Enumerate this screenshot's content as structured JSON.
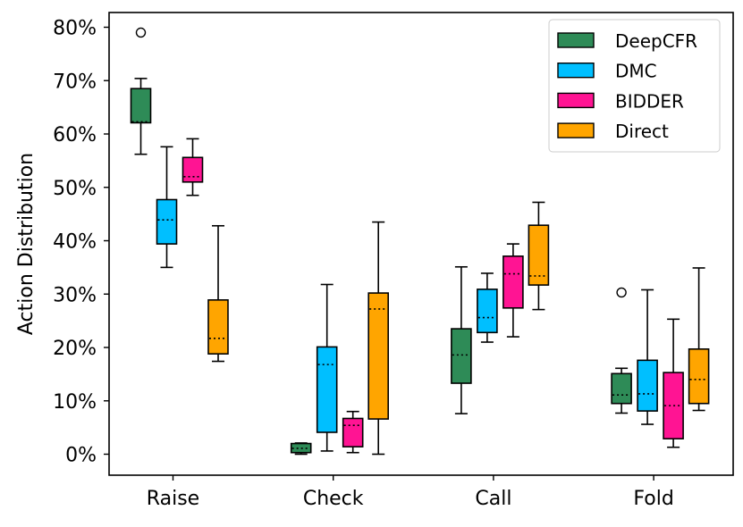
{
  "chart_data": {
    "type": "boxplot",
    "title": "",
    "xlabel": "",
    "ylabel": "Action Distribution",
    "ylim": [
      -3.7,
      83
    ],
    "yticks": [
      0,
      10,
      20,
      30,
      40,
      50,
      60,
      70,
      80
    ],
    "ytick_format": "{v}%",
    "grid": false,
    "legend_position": "top-right",
    "categories": [
      "Raise",
      "Check",
      "Call",
      "Fold"
    ],
    "median_style": "dotted",
    "series": [
      {
        "name": "DeepCFR",
        "color": "#2e8b57",
        "boxes": [
          {
            "whislo": 56.2,
            "q1": 62.1,
            "med": 62.3,
            "q3": 68.5,
            "whishi": 70.4,
            "fliers": [
              79.0
            ]
          },
          {
            "whislo": 0.0,
            "q1": 0.3,
            "med": 1.1,
            "q3": 2.0,
            "whishi": 2.1,
            "fliers": []
          },
          {
            "whislo": 7.6,
            "q1": 13.3,
            "med": 18.6,
            "q3": 23.5,
            "whishi": 35.1,
            "fliers": []
          },
          {
            "whislo": 7.7,
            "q1": 9.5,
            "med": 11.1,
            "q3": 15.1,
            "whishi": 16.1,
            "fliers": [
              30.3
            ]
          }
        ]
      },
      {
        "name": "DMC",
        "color": "#00bfff",
        "boxes": [
          {
            "whislo": 35.0,
            "q1": 39.4,
            "med": 43.9,
            "q3": 47.7,
            "whishi": 57.6,
            "fliers": []
          },
          {
            "whislo": 0.6,
            "q1": 4.1,
            "med": 16.8,
            "q3": 20.1,
            "whishi": 31.8,
            "fliers": []
          },
          {
            "whislo": 21.0,
            "q1": 22.8,
            "med": 25.6,
            "q3": 30.9,
            "whishi": 33.9,
            "fliers": []
          },
          {
            "whislo": 5.6,
            "q1": 8.1,
            "med": 11.3,
            "q3": 17.6,
            "whishi": 30.8,
            "fliers": []
          }
        ]
      },
      {
        "name": "BIDDER",
        "color": "#ff1493",
        "boxes": [
          {
            "whislo": 48.5,
            "q1": 51.0,
            "med": 52.0,
            "q3": 55.6,
            "whishi": 59.1,
            "fliers": []
          },
          {
            "whislo": 0.3,
            "q1": 1.4,
            "med": 5.4,
            "q3": 6.7,
            "whishi": 8.0,
            "fliers": []
          },
          {
            "whislo": 22.0,
            "q1": 27.4,
            "med": 33.8,
            "q3": 37.1,
            "whishi": 39.4,
            "fliers": []
          },
          {
            "whislo": 1.3,
            "q1": 2.9,
            "med": 9.1,
            "q3": 15.3,
            "whishi": 25.3,
            "fliers": []
          }
        ]
      },
      {
        "name": "Direct",
        "color": "#ffa500",
        "boxes": [
          {
            "whislo": 17.4,
            "q1": 18.8,
            "med": 21.7,
            "q3": 28.9,
            "whishi": 42.8,
            "fliers": []
          },
          {
            "whislo": 0.0,
            "q1": 6.6,
            "med": 27.2,
            "q3": 30.2,
            "whishi": 43.5,
            "fliers": []
          },
          {
            "whislo": 27.1,
            "q1": 31.7,
            "med": 33.4,
            "q3": 42.9,
            "whishi": 47.2,
            "fliers": []
          },
          {
            "whislo": 8.2,
            "q1": 9.5,
            "med": 14.0,
            "q3": 19.7,
            "whishi": 34.9,
            "fliers": []
          }
        ]
      }
    ]
  }
}
